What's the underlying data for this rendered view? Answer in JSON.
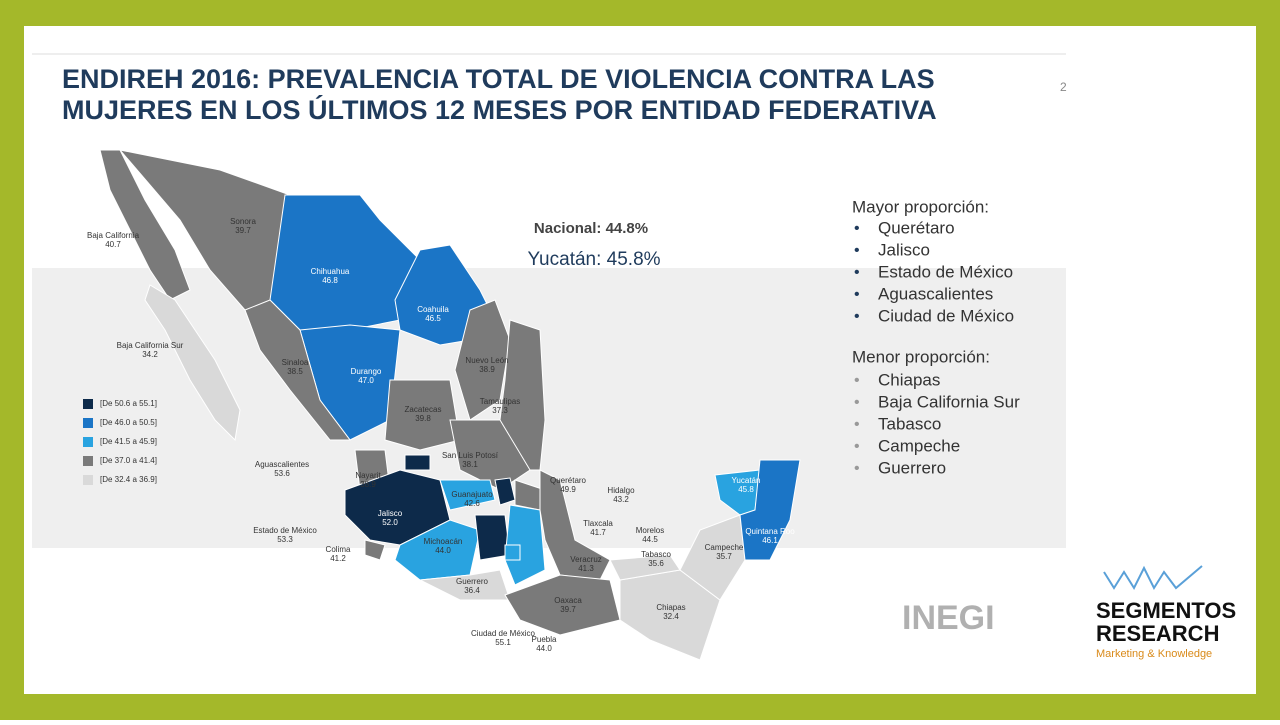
{
  "header": {
    "title_lines": [
      "ENDIREH 2016: PREVALENCIA TOTAL DE VIOLENCIA CONTRA LAS",
      "MUJERES EN LOS ÚLTIMOS 12 MESES POR ENTIDAD FEDERATIVA"
    ],
    "page_number": "2"
  },
  "highlights": {
    "national": "Nacional: 44.8%",
    "yucatan": "Yucatán: 45.8%"
  },
  "legend": [
    "[De 50.6 a 55.1]",
    "[De 46.0 a 50.5]",
    "[De 41.5 a 45.9]",
    "[De 37.0 a 41.4]",
    "[De 32.4 a 36.9]"
  ],
  "states": [
    {
      "name": "Baja California",
      "value": "40.7"
    },
    {
      "name": "Sonora",
      "value": "39.7"
    },
    {
      "name": "Chihuahua",
      "value": "46.8"
    },
    {
      "name": "Coahuila",
      "value": "46.5"
    },
    {
      "name": "Baja California Sur",
      "value": "34.2"
    },
    {
      "name": "Sinaloa",
      "value": "38.5"
    },
    {
      "name": "Durango",
      "value": "47.0"
    },
    {
      "name": "Nuevo León",
      "value": "38.9"
    },
    {
      "name": "Tamaulipas",
      "value": "37.3"
    },
    {
      "name": "Zacatecas",
      "value": "39.8"
    },
    {
      "name": "San Luis Potosí",
      "value": "38.1"
    },
    {
      "name": "Aguascalientes",
      "value": "53.6"
    },
    {
      "name": "Nayarit",
      "value": "38.9"
    },
    {
      "name": "Querétaro",
      "value": "49.9"
    },
    {
      "name": "Hidalgo",
      "value": "43.2"
    },
    {
      "name": "Guanajuato",
      "value": "42.6"
    },
    {
      "name": "Jalisco",
      "value": "52.0"
    },
    {
      "name": "Tlaxcala",
      "value": "41.7"
    },
    {
      "name": "Morelos",
      "value": "44.5"
    },
    {
      "name": "Estado de México",
      "value": "53.3"
    },
    {
      "name": "Michoacán",
      "value": "44.0"
    },
    {
      "name": "Colima",
      "value": "41.2"
    },
    {
      "name": "Veracruz",
      "value": "41.3"
    },
    {
      "name": "Tabasco",
      "value": "35.6"
    },
    {
      "name": "Campeche",
      "value": "35.7"
    },
    {
      "name": "Yucatán",
      "value": "45.8"
    },
    {
      "name": "Quintana Roo",
      "value": "46.1"
    },
    {
      "name": "Guerrero",
      "value": "36.4"
    },
    {
      "name": "Oaxaca",
      "value": "39.7"
    },
    {
      "name": "Chiapas",
      "value": "32.4"
    },
    {
      "name": "Ciudad de México",
      "value": "55.1"
    },
    {
      "name": "Puebla",
      "value": "44.0"
    }
  ],
  "rankings": {
    "highest_title": "Mayor proporción:",
    "highest": [
      "Querétaro",
      "Jalisco",
      "Estado de México",
      "Aguascalientes",
      "Ciudad de México"
    ],
    "lowest_title": "Menor proporción:",
    "lowest": [
      "Chiapas",
      "Baja California Sur",
      "Tabasco",
      "Campeche",
      "Guerrero"
    ]
  },
  "logos": {
    "source": "INEGI",
    "brand_line1": "SEGMENTOS",
    "brand_line2": "RESEARCH",
    "brand_tagline": "Marketing & Knowledge"
  }
}
